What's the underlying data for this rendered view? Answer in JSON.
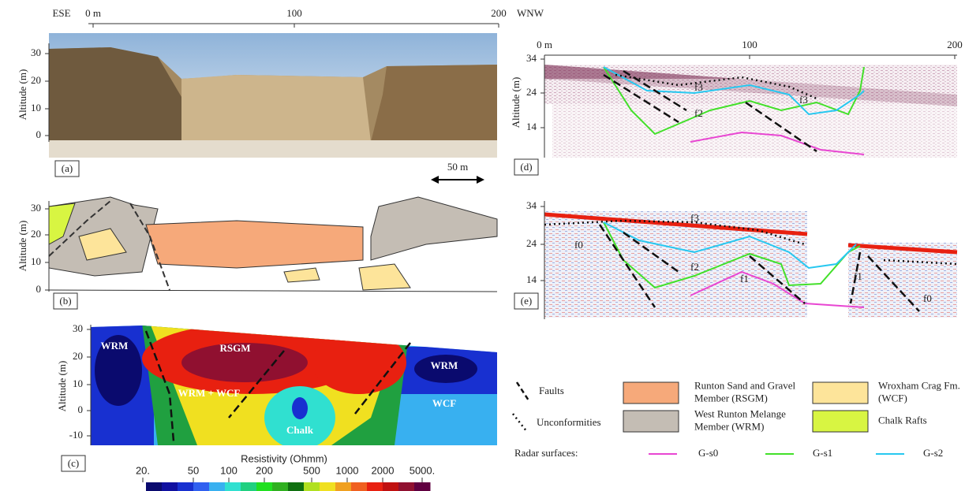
{
  "panel_a": {
    "label": "(a)",
    "direction_left": "ESE",
    "direction_right": "WNW",
    "distance_ticks": [
      "0 m",
      "100",
      "200"
    ],
    "y_axis_label": "Altitude (m)",
    "y_ticks": [
      "30",
      "20",
      "10",
      "0"
    ],
    "scale_bar": "50 m"
  },
  "panel_b": {
    "label": "(b)",
    "y_axis_label": "Altitude (m)",
    "y_ticks": [
      "30",
      "20",
      "10",
      "0"
    ]
  },
  "panel_c": {
    "label": "(c)",
    "y_axis_label": "Altitude (m)",
    "y_ticks": [
      "30",
      "20",
      "10",
      "0",
      "-10"
    ],
    "unit_labels": [
      "WRM",
      "RSGM",
      "WRM + WCF",
      "Chalk",
      "WRM",
      "WCF"
    ],
    "colorbar_title": "Resistivity (Ohmm)",
    "colorbar_ticks": [
      "20.",
      "50",
      "100",
      "200",
      "500",
      "1000",
      "2000",
      "5000."
    ]
  },
  "panel_d": {
    "label": "(d)",
    "distance_ticks": [
      "0 m",
      "100",
      "200"
    ],
    "y_axis_label": "Altitude (m)",
    "y_ticks": [
      "34",
      "24",
      "14"
    ],
    "fault_labels": [
      "f3",
      "f2",
      "f3"
    ]
  },
  "panel_e": {
    "label": "(e)",
    "y_ticks": [
      "34",
      "24",
      "14"
    ],
    "fault_labels": [
      "f0",
      "f3",
      "f2",
      "f1",
      "f1",
      "f0"
    ]
  },
  "legend": {
    "faults": "Faults",
    "unconformities": "Unconformities",
    "units": [
      {
        "name_lines": [
          "Runton Sand and Gravel",
          "Member (RSGM)"
        ],
        "color": "#f6a97a"
      },
      {
        "name_lines": [
          "West Runton Melange",
          "Member (WRM)"
        ],
        "color": "#c4bdb4"
      },
      {
        "name_lines": [
          "Wroxham Crag Fm.",
          "(WCF)"
        ],
        "color": "#fde49a"
      },
      {
        "name_lines": [
          "Chalk Rafts"
        ],
        "color": "#d8f542"
      }
    ],
    "radar_title": "Radar surfaces:",
    "radar": [
      {
        "name": "G-s0",
        "color": "#e846d2"
      },
      {
        "name": "G-s1",
        "color": "#43e02a"
      },
      {
        "name": "G-s2",
        "color": "#27c8f0"
      }
    ]
  }
}
